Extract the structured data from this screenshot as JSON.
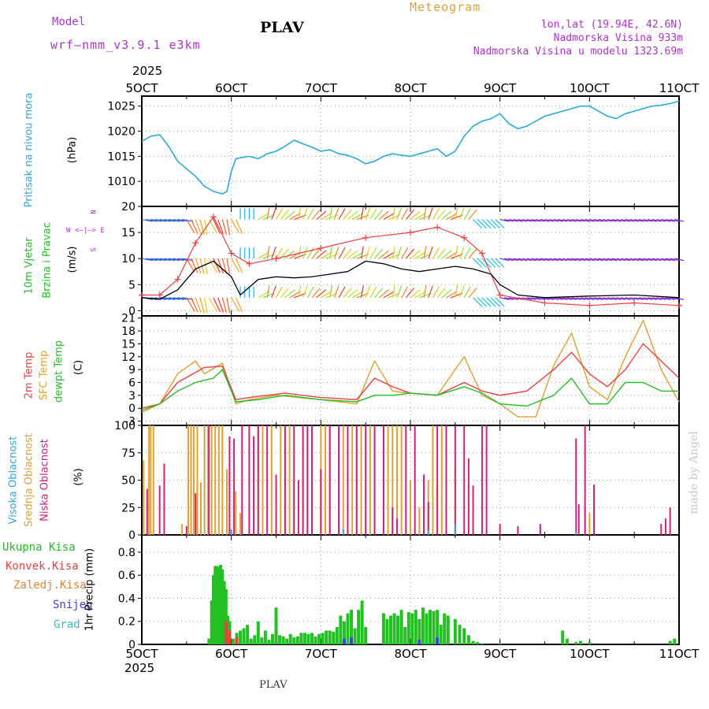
{
  "header": {
    "model_label": "Model",
    "model_name": "wrf–nmm_v3.9.1  e3km",
    "station": "PLAV",
    "meteogram": "Meteogram",
    "lonlat": "lon,lat (19.94E, 42.6N)",
    "elevation": "Nadmorska Visina 933m",
    "model_elevation": "Nadmorska Visina u modelu 1323.69m",
    "year_top": "2025",
    "year_bottom": "2025",
    "footer_station": "PLAV",
    "watermark": "made by Angel"
  },
  "colors": {
    "pressure": "#29a9e0",
    "temp2m": "#ec4040",
    "sfc": "#e0a030",
    "dewpt": "#22c022",
    "high_cloud": "#29a9e0",
    "mid_cloud": "#e0a030",
    "low_cloud": "#d0207a",
    "total_precip": "#22c022",
    "convective": "#ec4040",
    "freezing": "#f07f30",
    "snow": "#4040e0",
    "hail": "#30c0c0",
    "purple": "#b030d0"
  },
  "axis_labels": {
    "pressure": [
      "Pritisak na nivou mora",
      "(hPa)"
    ],
    "wind": [
      "10m Vjetar",
      "Brzina i Pravac",
      "(m/s)"
    ],
    "wind_compass": [
      "N",
      "W  <–|–>  E",
      "S"
    ],
    "temp": [
      "2m Temp",
      "SFC Temp",
      "dewpt Temp",
      "(C)"
    ],
    "cloud": [
      "Visoka Oblacnost",
      "Srednja Oblacnost",
      "Niska Oblacnost",
      "(%)"
    ],
    "precip_legend": [
      "Ukupna Kisa",
      "Konvek.Kisa",
      "Zaledj.Kisa",
      "Snijeg",
      "Grad"
    ],
    "precip_units": "1hr Precip (mm)"
  },
  "chart_data": [
    {
      "type": "line",
      "name": "pressure",
      "title": "Pritisak na nivou mora",
      "ylabel": "(hPa)",
      "x_categories": [
        "5OCT",
        "6OCT",
        "7OCT",
        "8OCT",
        "9OCT",
        "10OCT",
        "11OCT"
      ],
      "ylim": [
        1005,
        1027
      ],
      "yticks": [
        1010,
        1015,
        1020,
        1025
      ],
      "x": [
        0,
        0.1,
        0.2,
        0.3,
        0.4,
        0.5,
        0.6,
        0.7,
        0.8,
        0.9,
        0.95,
        1.0,
        1.05,
        1.1,
        1.2,
        1.3,
        1.4,
        1.5,
        1.6,
        1.7,
        1.8,
        1.9,
        2.0,
        2.1,
        2.2,
        2.3,
        2.4,
        2.5,
        2.6,
        2.7,
        2.8,
        2.9,
        3.0,
        3.1,
        3.2,
        3.3,
        3.4,
        3.5,
        3.6,
        3.7,
        3.8,
        3.9,
        4.0,
        4.1,
        4.2,
        4.3,
        4.4,
        4.5,
        4.6,
        4.7,
        4.8,
        4.9,
        5.0,
        5.1,
        5.2,
        5.3,
        5.4,
        5.5,
        5.6,
        5.7,
        5.8,
        5.9,
        6.0
      ],
      "values": [
        1018,
        1019,
        1019.3,
        1017,
        1014,
        1012.5,
        1011,
        1009,
        1008,
        1007.5,
        1008,
        1012,
        1014.5,
        1014.7,
        1015,
        1014.5,
        1015.5,
        1016,
        1017,
        1018.2,
        1017.5,
        1016.8,
        1016,
        1016.3,
        1015.5,
        1015.2,
        1014.5,
        1013.5,
        1014,
        1015,
        1015.5,
        1015.2,
        1015,
        1015.5,
        1016,
        1016.5,
        1015,
        1016,
        1019,
        1021,
        1022,
        1022.5,
        1023.5,
        1021.5,
        1020.5,
        1021,
        1022,
        1023,
        1023.5,
        1024,
        1024.5,
        1025,
        1025,
        1024,
        1023,
        1022.5,
        1023.5,
        1024,
        1024.5,
        1025,
        1025.2,
        1025.5,
        1026
      ]
    },
    {
      "type": "line",
      "name": "wind",
      "title": "10m Vjetar Brzina i Pravac",
      "ylabel": "(m/s)",
      "ylim": [
        -1,
        20
      ],
      "yticks": [
        0,
        5,
        10,
        15,
        20
      ],
      "series": [
        {
          "name": "wind speed",
          "x": [
            0,
            0.2,
            0.4,
            0.6,
            0.8,
            1.0,
            1.1,
            1.3,
            1.5,
            1.7,
            1.9,
            2.1,
            2.3,
            2.5,
            2.7,
            2.9,
            3.1,
            3.3,
            3.5,
            3.7,
            3.9,
            4.0,
            4.2,
            4.5,
            5.0,
            5.5,
            6.0
          ],
          "values": [
            2.5,
            2.2,
            4,
            8,
            9.5,
            6.5,
            3,
            6,
            6.5,
            6.3,
            6.5,
            7,
            7.5,
            9.5,
            9,
            8,
            7.5,
            8,
            8.5,
            8,
            7,
            5,
            3,
            2.5,
            2.8,
            3,
            2.5
          ]
        },
        {
          "name": "gust",
          "x": [
            0,
            0.2,
            0.4,
            0.6,
            0.8,
            1.0,
            1.2,
            1.5,
            2.0,
            2.5,
            3.0,
            3.3,
            3.6,
            3.8,
            4.0,
            4.5,
            5.0,
            5.5,
            6.0
          ],
          "values": [
            3,
            3,
            6,
            13,
            18,
            11,
            9,
            10,
            12,
            14,
            15,
            16,
            14,
            11,
            3,
            1.5,
            1.0,
            1.5,
            1.0
          ]
        }
      ],
      "arrow_rows_ms": [
        2.5,
        10,
        17.5
      ]
    },
    {
      "type": "line",
      "name": "temperature",
      "title": "2m Temp / SFC Temp / dewpt Temp",
      "ylabel": "(C)",
      "ylim": [
        -4,
        21.5
      ],
      "yticks": [
        -3,
        0,
        3,
        6,
        9,
        12,
        15,
        18,
        21
      ],
      "series": [
        {
          "name": "2m Temp",
          "x": [
            0,
            0.2,
            0.4,
            0.7,
            0.9,
            1.05,
            1.2,
            1.6,
            2.0,
            2.4,
            2.6,
            2.8,
            3.0,
            3.3,
            3.6,
            3.8,
            4.0,
            4.3,
            4.6,
            4.8,
            5.0,
            5.2,
            5.4,
            5.6,
            5.8,
            6.0
          ],
          "values": [
            0,
            1,
            6,
            9.5,
            9.8,
            2,
            2.5,
            3.5,
            2.5,
            2,
            7,
            5,
            3.5,
            3,
            6,
            4,
            3,
            4,
            9,
            13,
            8,
            5,
            9,
            15,
            11,
            7
          ]
        },
        {
          "name": "SFC Temp",
          "x": [
            0,
            0.2,
            0.4,
            0.6,
            0.7,
            0.9,
            1.05,
            1.2,
            1.5,
            2.0,
            2.4,
            2.6,
            2.8,
            3.0,
            3.3,
            3.6,
            3.8,
            4.0,
            4.2,
            4.4,
            4.6,
            4.8,
            5.0,
            5.2,
            5.4,
            5.6,
            5.8,
            6.0
          ],
          "values": [
            -1,
            1,
            8,
            11,
            8,
            10.5,
            1,
            2,
            3,
            2,
            1,
            11,
            4,
            3.5,
            3,
            12,
            3,
            1,
            -2,
            -2,
            10,
            17.5,
            5,
            2,
            12,
            20.5,
            9,
            1.5
          ]
        },
        {
          "name": "dewpt Temp",
          "x": [
            0,
            0.2,
            0.4,
            0.6,
            0.8,
            0.9,
            1.05,
            1.3,
            1.6,
            2.0,
            2.4,
            2.6,
            2.8,
            3.0,
            3.3,
            3.6,
            3.8,
            4.0,
            4.3,
            4.6,
            4.8,
            5.0,
            5.2,
            5.4,
            5.6,
            5.8,
            6.0
          ],
          "values": [
            -0.5,
            1,
            4,
            6,
            7,
            9,
            1.5,
            2,
            3,
            2,
            1.5,
            3,
            3,
            3.5,
            3,
            5,
            3.5,
            1,
            0.5,
            3,
            7,
            1,
            1,
            6,
            6,
            4,
            4
          ]
        }
      ]
    },
    {
      "type": "bar",
      "name": "cloud",
      "title": "Visoka / Srednja / Niska Oblacnost",
      "ylabel": "(%)",
      "ylim": [
        0,
        100
      ],
      "yticks": [
        0,
        25,
        50,
        75,
        100
      ],
      "series": [
        {
          "name": "Srednja Oblacnost",
          "x": [
            0.02,
            0.08,
            0.1,
            0.13,
            0.45,
            0.52,
            0.55,
            0.58,
            0.62,
            0.66,
            0.7,
            0.74,
            0.78,
            0.82,
            0.86,
            0.9,
            0.95,
            1.05,
            1.1,
            1.3,
            1.35,
            1.45,
            1.55,
            1.6,
            1.65,
            1.7,
            1.8,
            1.85,
            1.9,
            2.0,
            2.05,
            2.1,
            2.2,
            2.25,
            2.3,
            2.35,
            2.4,
            2.45,
            2.55,
            2.6,
            2.7,
            2.75,
            2.8,
            2.85,
            2.9,
            3.0,
            3.1,
            3.15,
            3.2,
            3.25,
            3.3,
            3.35,
            3.4,
            3.5,
            4.95,
            5.0
          ],
          "values": [
            68,
            100,
            100,
            100,
            10,
            100,
            100,
            100,
            100,
            48,
            100,
            100,
            100,
            100,
            100,
            100,
            60,
            40,
            20,
            100,
            100,
            100,
            100,
            100,
            100,
            50,
            100,
            100,
            100,
            100,
            100,
            100,
            100,
            100,
            100,
            100,
            100,
            100,
            100,
            100,
            100,
            100,
            100,
            100,
            100,
            50,
            25,
            30,
            50,
            100,
            45,
            100,
            100,
            60,
            25,
            20
          ]
        },
        {
          "name": "Niska Oblacnost",
          "x": [
            0.06,
            0.2,
            0.25,
            0.5,
            0.6,
            0.75,
            0.98,
            1.03,
            1.12,
            1.2,
            1.25,
            1.3,
            1.4,
            1.5,
            1.6,
            1.7,
            1.75,
            1.8,
            1.85,
            1.9,
            2.0,
            2.1,
            2.2,
            2.3,
            2.4,
            2.5,
            2.6,
            2.7,
            2.8,
            2.85,
            2.95,
            3.05,
            3.15,
            3.2,
            3.3,
            3.4,
            3.5,
            3.6,
            3.65,
            3.7,
            3.8,
            3.85,
            4.0,
            4.2,
            4.45,
            4.85,
            4.88,
            4.95,
            5.05,
            5.8,
            5.85,
            5.9
          ],
          "values": [
            42,
            45,
            65,
            8,
            38,
            100,
            90,
            88,
            100,
            100,
            90,
            100,
            100,
            55,
            100,
            100,
            50,
            100,
            100,
            100,
            60,
            100,
            100,
            100,
            100,
            100,
            100,
            100,
            25,
            15,
            100,
            100,
            55,
            30,
            100,
            100,
            100,
            100,
            70,
            45,
            100,
            100,
            10,
            8,
            10,
            88,
            28,
            100,
            46,
            10,
            15,
            25
          ]
        },
        {
          "name": "Visoka Oblacnost",
          "x": [
            1.0,
            2.25,
            3.2,
            3.5,
            4.85
          ],
          "values": [
            5,
            5,
            4,
            10,
            3
          ]
        }
      ]
    },
    {
      "type": "bar",
      "name": "precipitation",
      "title": "1hr Precip",
      "ylabel": "1hr Precip (mm)",
      "ylim": [
        0,
        0.95
      ],
      "yticks": [
        0,
        0.2,
        0.4,
        0.6,
        0.8
      ],
      "series": [
        {
          "name": "Ukupna Kisa",
          "x": [
            0.75,
            0.78,
            0.8,
            0.82,
            0.84,
            0.86,
            0.88,
            0.9,
            0.92,
            0.94,
            0.96,
            0.98,
            1.02,
            1.06,
            1.1,
            1.14,
            1.18,
            1.22,
            1.26,
            1.3,
            1.34,
            1.38,
            1.42,
            1.46,
            1.5,
            1.54,
            1.58,
            1.62,
            1.66,
            1.7,
            1.74,
            1.78,
            1.82,
            1.86,
            1.9,
            1.94,
            1.98,
            2.02,
            2.06,
            2.1,
            2.14,
            2.18,
            2.22,
            2.26,
            2.3,
            2.34,
            2.38,
            2.42,
            2.46,
            2.5,
            2.7,
            2.74,
            2.78,
            2.82,
            2.86,
            2.9,
            2.94,
            2.98,
            3.02,
            3.06,
            3.1,
            3.14,
            3.18,
            3.22,
            3.26,
            3.3,
            3.34,
            3.38,
            3.42,
            3.5,
            3.55,
            3.6,
            3.65,
            3.7,
            3.75,
            3.8,
            4.0,
            4.7,
            4.75,
            4.85,
            4.9,
            5.0,
            5.9,
            5.95
          ],
          "values": [
            0.05,
            0.38,
            0.6,
            0.68,
            0.68,
            0.67,
            0.69,
            0.65,
            0.55,
            0.48,
            0.25,
            0.2,
            0.05,
            0.1,
            0.12,
            0.14,
            0.17,
            0.05,
            0.08,
            0.2,
            0.06,
            0.12,
            0.04,
            0.09,
            0.32,
            0.08,
            0.07,
            0.05,
            0.09,
            0.06,
            0.07,
            0.1,
            0.1,
            0.09,
            0.1,
            0.07,
            0.09,
            0.1,
            0.12,
            0.12,
            0.11,
            0.15,
            0.25,
            0.2,
            0.27,
            0.3,
            0.14,
            0.3,
            0.38,
            0.15,
            0.27,
            0.22,
            0.25,
            0.27,
            0.25,
            0.3,
            0.15,
            0.28,
            0.27,
            0.3,
            0.22,
            0.32,
            0.27,
            0.3,
            0.29,
            0.3,
            0.17,
            0.27,
            0.25,
            0.22,
            0.17,
            0.14,
            0.08,
            0.03,
            0.02,
            0.01,
            0.01,
            0.12,
            0.05,
            0.02,
            0.03,
            0.02,
            0.03,
            0.05
          ]
        },
        {
          "name": "Konvek.Kisa",
          "x": [
            0.94,
            0.98,
            1.06
          ],
          "values": [
            0.2,
            0.12,
            0.06
          ]
        },
        {
          "name": "Snijeg",
          "x": [
            2.26,
            2.34,
            3.1,
            3.3
          ],
          "values": [
            0.05,
            0.06,
            0.04,
            0.06
          ]
        },
        {
          "name": "Grad",
          "x": [],
          "values": []
        }
      ]
    }
  ]
}
